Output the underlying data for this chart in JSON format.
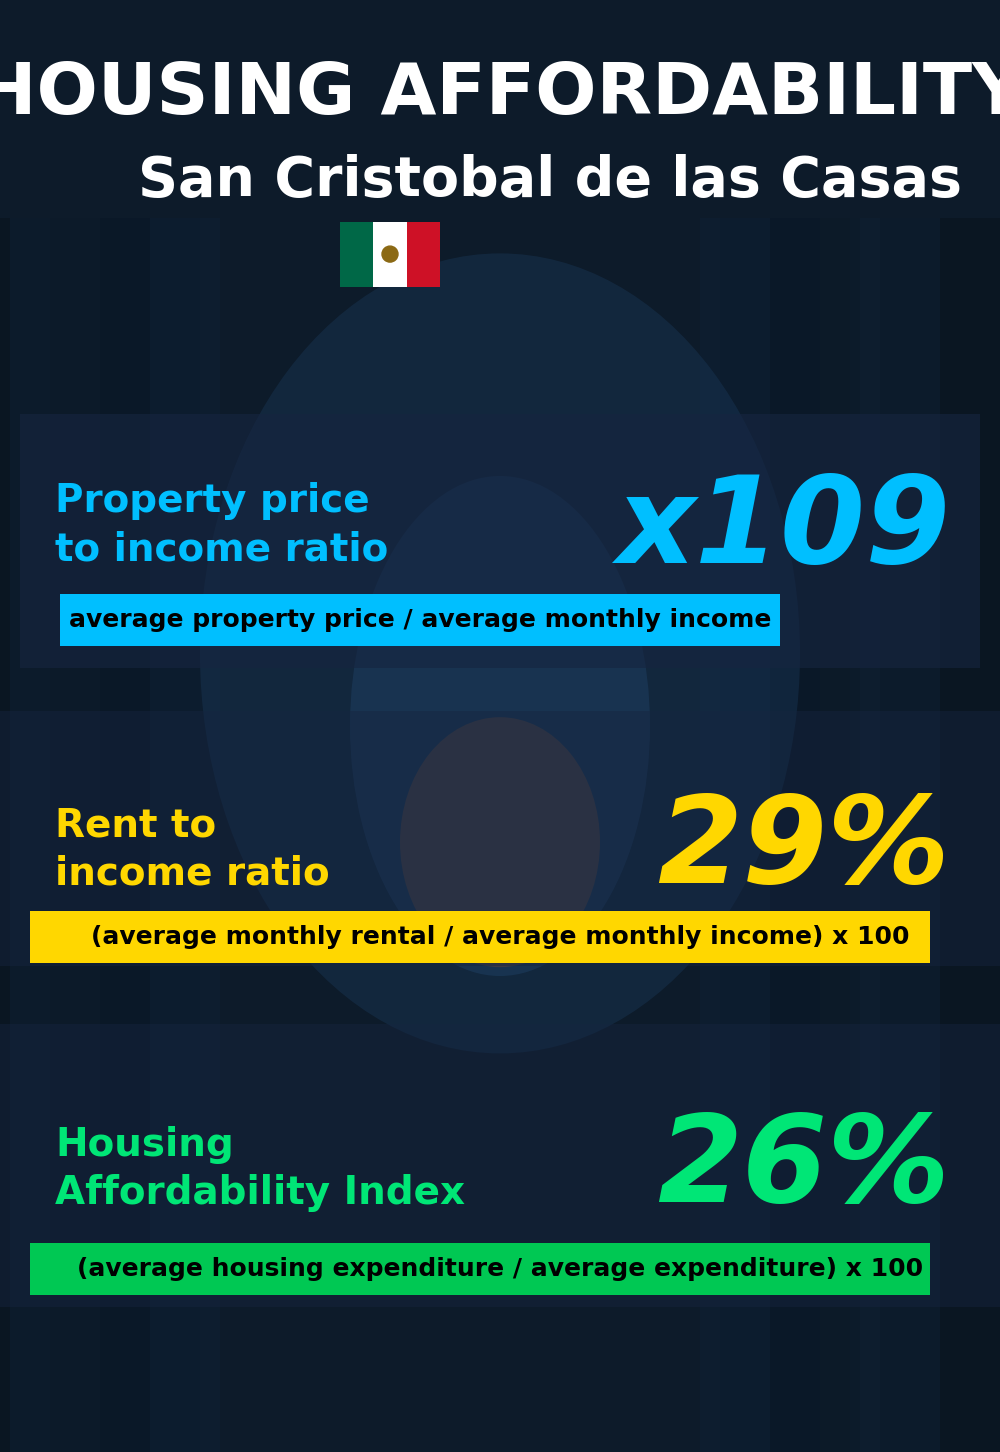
{
  "title_line1": "HOUSING AFFORDABILITY",
  "title_line2": "San Cristobal de las Casas",
  "bg_color": "#0d1b2a",
  "section1_label": "Property price\nto income ratio",
  "section1_value": "x109",
  "section1_label_color": "#00bfff",
  "section1_value_color": "#00bfff",
  "section1_formula": "average property price / average monthly income",
  "section1_formula_bg": "#00bfff",
  "section1_formula_color": "#000000",
  "section2_label": "Rent to\nincome ratio",
  "section2_value": "29%",
  "section2_label_color": "#ffd700",
  "section2_value_color": "#ffd700",
  "section2_formula": "(average monthly rental / average monthly income) x 100",
  "section2_formula_bg": "#ffd700",
  "section2_formula_color": "#000000",
  "section3_label": "Housing\nAffordability Index",
  "section3_value": "26%",
  "section3_label_color": "#00e676",
  "section3_value_color": "#00e676",
  "section3_formula": "(average housing expenditure / average expenditure) x 100",
  "section3_formula_bg": "#00c853",
  "section3_formula_color": "#000000",
  "title_color": "#ffffff",
  "subtitle_color": "#ffffff",
  "flag_green": "#006847",
  "flag_white": "#ffffff",
  "flag_red": "#ce1126"
}
